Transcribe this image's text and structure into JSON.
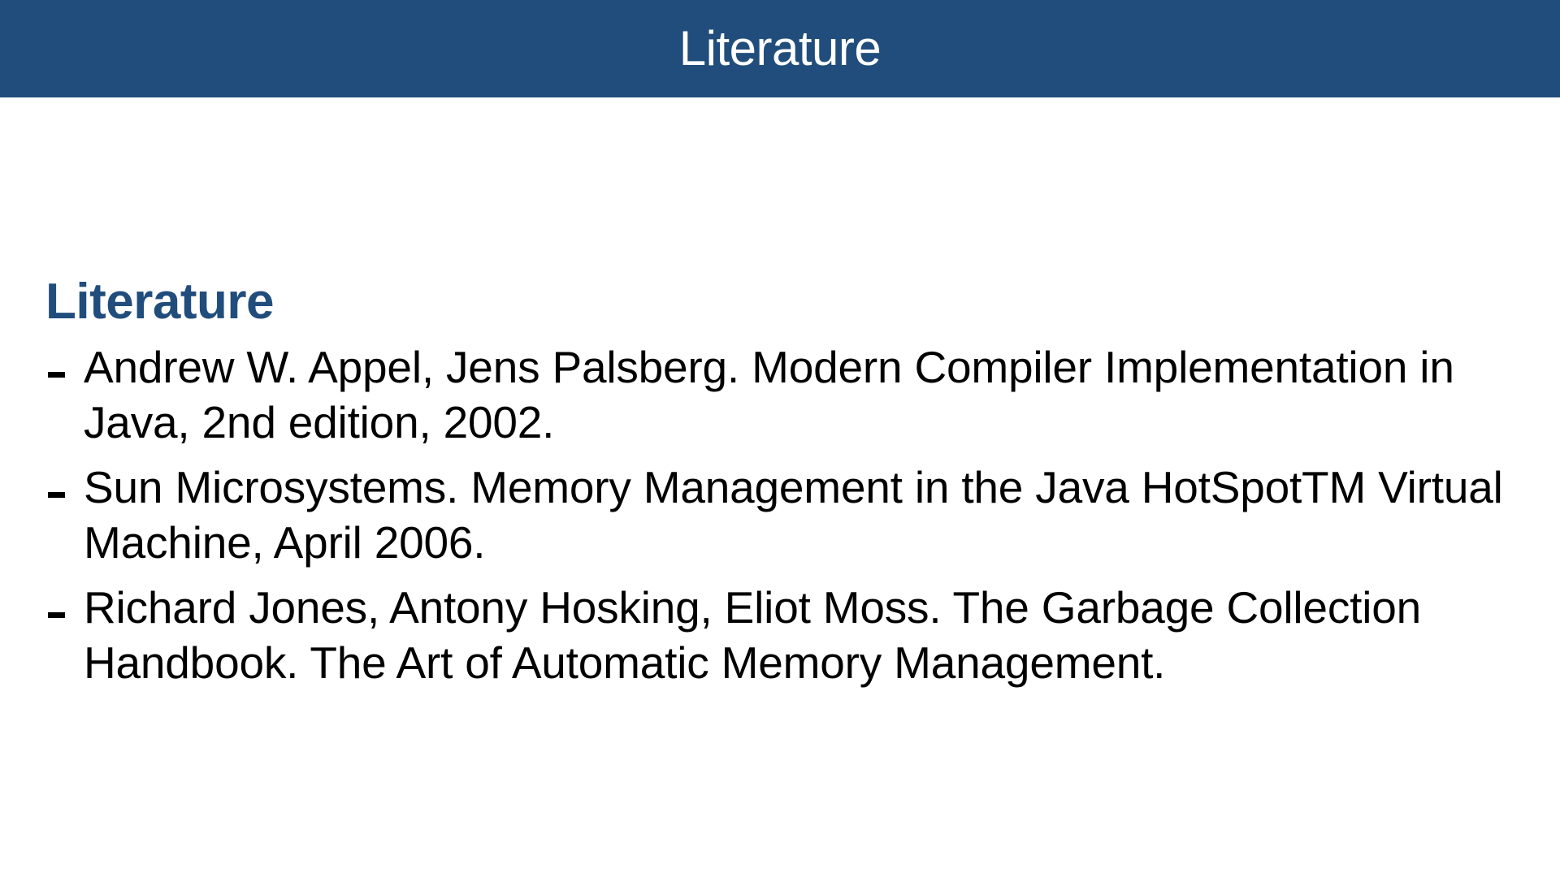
{
  "header": {
    "title": "Literature"
  },
  "section": {
    "heading": "Literature",
    "references": [
      "Andrew W. Appel, Jens Palsberg. Modern Compiler Implementation in Java, 2nd edition, 2002.",
      "Sun Microsystems. Memory Management in the Java HotSpotTM Virtual Machine, April 2006.",
      "Richard Jones, Antony Hosking, Eliot Moss. The Garbage Collection Handbook. The Art of Automatic Memory Management."
    ]
  },
  "colors": {
    "header_background": "#214d7c",
    "heading_text": "#214d7c",
    "body_text": "#000000"
  }
}
